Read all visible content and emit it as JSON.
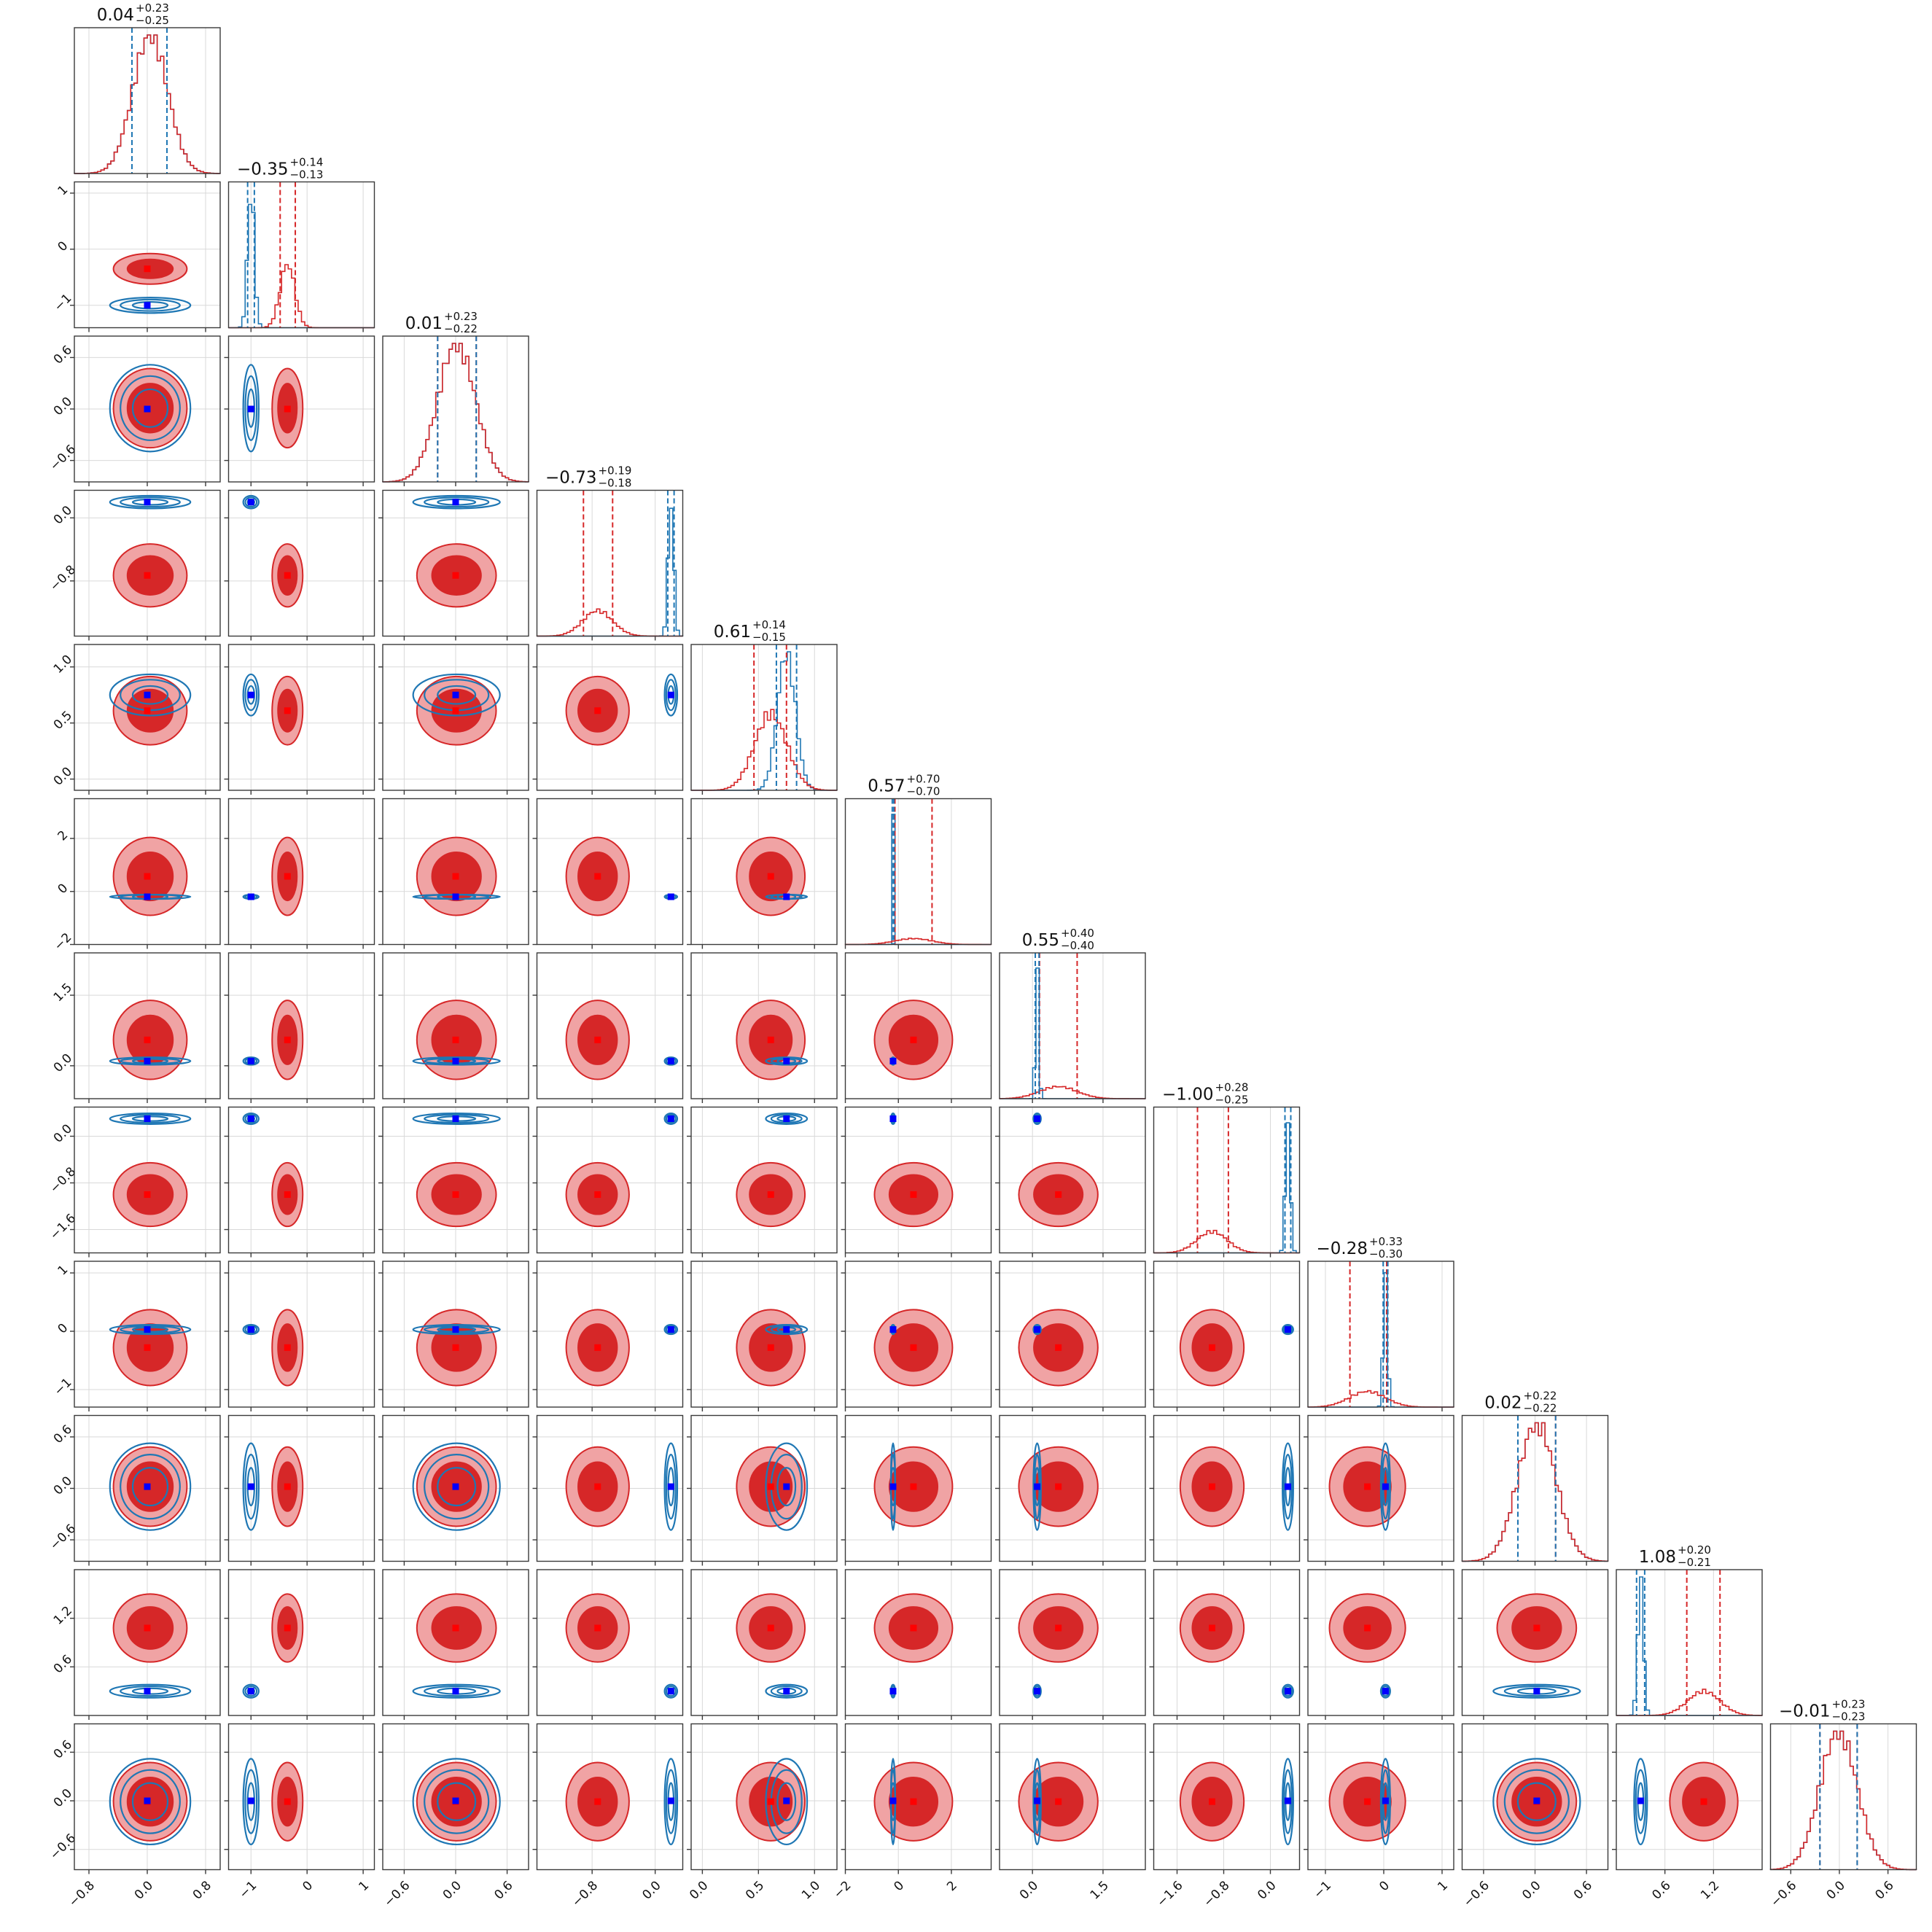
{
  "chart_data": {
    "type": "corner",
    "n_params": 12,
    "grid": true,
    "colors": {
      "series_a": "#d62728",
      "series_a_light": "#f0a3a4",
      "series_b": "#1f77b4",
      "truth_a": "#ff0000",
      "truth_b": "#0000ff"
    },
    "params": [
      {
        "title": "0.04",
        "plus": "+0.23",
        "minus": "−0.25",
        "range": [
          -1.0,
          1.0
        ],
        "ticks": [
          -0.8,
          0.0,
          0.8
        ],
        "tick_labels": [
          "−0.8",
          "0.0",
          "0.8"
        ],
        "red": {
          "mean": 0.04,
          "sd": 0.24
        },
        "blue": {
          "mean": 0.04,
          "sd": 0.24
        },
        "q_red": [
          -0.21,
          0.27
        ],
        "q_blue": [
          -0.21,
          0.27
        ]
      },
      {
        "title": "−0.35",
        "plus": "+0.14",
        "minus": "−0.13",
        "range": [
          -1.4,
          1.2
        ],
        "ticks": [
          -1,
          0,
          1
        ],
        "tick_labels": [
          "−1",
          "0",
          "1"
        ],
        "red": {
          "mean": -0.35,
          "sd": 0.13
        },
        "blue": {
          "mean": -1.0,
          "sd": 0.06
        },
        "q_red": [
          -0.48,
          -0.21
        ],
        "q_blue": [
          -1.06,
          -0.94
        ]
      },
      {
        "title": "0.01",
        "plus": "+0.23",
        "minus": "−0.22",
        "range": [
          -0.85,
          0.85
        ],
        "ticks": [
          -0.6,
          0.0,
          0.6
        ],
        "tick_labels": [
          "−0.6",
          "0.0",
          "0.6"
        ],
        "red": {
          "mean": 0.01,
          "sd": 0.22
        },
        "blue": {
          "mean": 0.01,
          "sd": 0.22
        },
        "q_red": [
          -0.21,
          0.24
        ],
        "q_blue": [
          -0.21,
          0.24
        ]
      },
      {
        "title": "−0.73",
        "plus": "+0.19",
        "minus": "−0.18",
        "range": [
          -1.5,
          0.35
        ],
        "ticks": [
          -0.8,
          0.0
        ],
        "tick_labels": [
          "−0.8",
          "0.0"
        ],
        "red": {
          "mean": -0.73,
          "sd": 0.19
        },
        "blue": {
          "mean": 0.2,
          "sd": 0.035
        },
        "q_red": [
          -0.91,
          -0.54
        ],
        "q_blue": [
          0.16,
          0.24
        ]
      },
      {
        "title": "0.61",
        "plus": "+0.14",
        "minus": "−0.15",
        "range": [
          -0.1,
          1.2
        ],
        "ticks": [
          0.0,
          0.5,
          1.0
        ],
        "tick_labels": [
          "0.0",
          "0.5",
          "1.0"
        ],
        "red": {
          "mean": 0.61,
          "sd": 0.145
        },
        "blue": {
          "mean": 0.75,
          "sd": 0.08
        },
        "q_red": [
          0.46,
          0.75
        ],
        "q_blue": [
          0.66,
          0.84
        ]
      },
      {
        "title": "0.57",
        "plus": "+0.70",
        "minus": "−0.70",
        "range": [
          -2.0,
          3.5
        ],
        "ticks": [
          -2,
          0,
          2
        ],
        "tick_labels": [
          "−2",
          "0",
          "2"
        ],
        "red": {
          "mean": 0.57,
          "sd": 0.7
        },
        "blue": {
          "mean": -0.2,
          "sd": 0.03
        },
        "q_red": [
          -0.13,
          1.27
        ],
        "q_blue": [
          -0.23,
          -0.17
        ]
      },
      {
        "title": "0.55",
        "plus": "+0.40",
        "minus": "−0.40",
        "range": [
          -0.7,
          2.4
        ],
        "ticks": [
          0.0,
          1.5
        ],
        "tick_labels": [
          "0.0",
          "1.5"
        ],
        "red": {
          "mean": 0.55,
          "sd": 0.4
        },
        "blue": {
          "mean": 0.1,
          "sd": 0.035
        },
        "q_red": [
          0.15,
          0.95
        ],
        "q_blue": [
          0.06,
          0.14
        ]
      },
      {
        "title": "−1.00",
        "plus": "+0.28",
        "minus": "−0.25",
        "range": [
          -2.0,
          0.5
        ],
        "ticks": [
          -1.6,
          -0.8,
          0.0
        ],
        "tick_labels": [
          "−1.6",
          "−0.8",
          "0.0"
        ],
        "red": {
          "mean": -1.0,
          "sd": 0.26
        },
        "blue": {
          "mean": 0.3,
          "sd": 0.04
        },
        "q_red": [
          -1.25,
          -0.72
        ],
        "q_blue": [
          0.25,
          0.35
        ]
      },
      {
        "title": "−0.28",
        "plus": "+0.33",
        "minus": "−0.30",
        "range": [
          -1.3,
          1.2
        ],
        "ticks": [
          -1,
          0,
          1
        ],
        "tick_labels": [
          "−1",
          "0",
          "1"
        ],
        "red": {
          "mean": -0.28,
          "sd": 0.31
        },
        "blue": {
          "mean": 0.03,
          "sd": 0.035
        },
        "q_red": [
          -0.58,
          0.05
        ],
        "q_blue": [
          -0.01,
          0.07
        ]
      },
      {
        "title": "0.02",
        "plus": "+0.22",
        "minus": "−0.22",
        "range": [
          -0.85,
          0.85
        ],
        "ticks": [
          -0.6,
          0.0,
          0.6
        ],
        "tick_labels": [
          "−0.6",
          "0.0",
          "0.6"
        ],
        "red": {
          "mean": 0.02,
          "sd": 0.22
        },
        "blue": {
          "mean": 0.02,
          "sd": 0.22
        },
        "q_red": [
          -0.2,
          0.24
        ],
        "q_blue": [
          -0.2,
          0.24
        ]
      },
      {
        "title": "1.08",
        "plus": "+0.20",
        "minus": "−0.21",
        "range": [
          0.0,
          1.8
        ],
        "ticks": [
          0.6,
          1.2
        ],
        "tick_labels": [
          "0.6",
          "1.2"
        ],
        "red": {
          "mean": 1.08,
          "sd": 0.2
        },
        "blue": {
          "mean": 0.3,
          "sd": 0.035
        },
        "q_red": [
          0.87,
          1.28
        ],
        "q_blue": [
          0.25,
          0.35
        ]
      },
      {
        "title": "−0.01",
        "plus": "+0.23",
        "minus": "−0.23",
        "range": [
          -0.85,
          0.95
        ],
        "ticks": [
          -0.6,
          0.0,
          0.6
        ],
        "tick_labels": [
          "−0.6",
          "0.0",
          "0.6"
        ],
        "red": {
          "mean": -0.01,
          "sd": 0.23
        },
        "blue": {
          "mean": -0.01,
          "sd": 0.23
        },
        "q_red": [
          -0.24,
          0.22
        ],
        "q_blue": [
          -0.24,
          0.22
        ]
      }
    ],
    "truth_b": [
      0.0,
      -1.0,
      0.0,
      0.2,
      0.75,
      -0.2,
      0.1,
      0.3,
      0.03,
      0.02,
      0.3,
      0.0
    ],
    "truth_a": [
      0.0,
      -0.35,
      0.0,
      -0.73,
      0.61,
      0.57,
      0.55,
      -1.0,
      -0.28,
      0.02,
      1.08,
      -0.01
    ]
  }
}
